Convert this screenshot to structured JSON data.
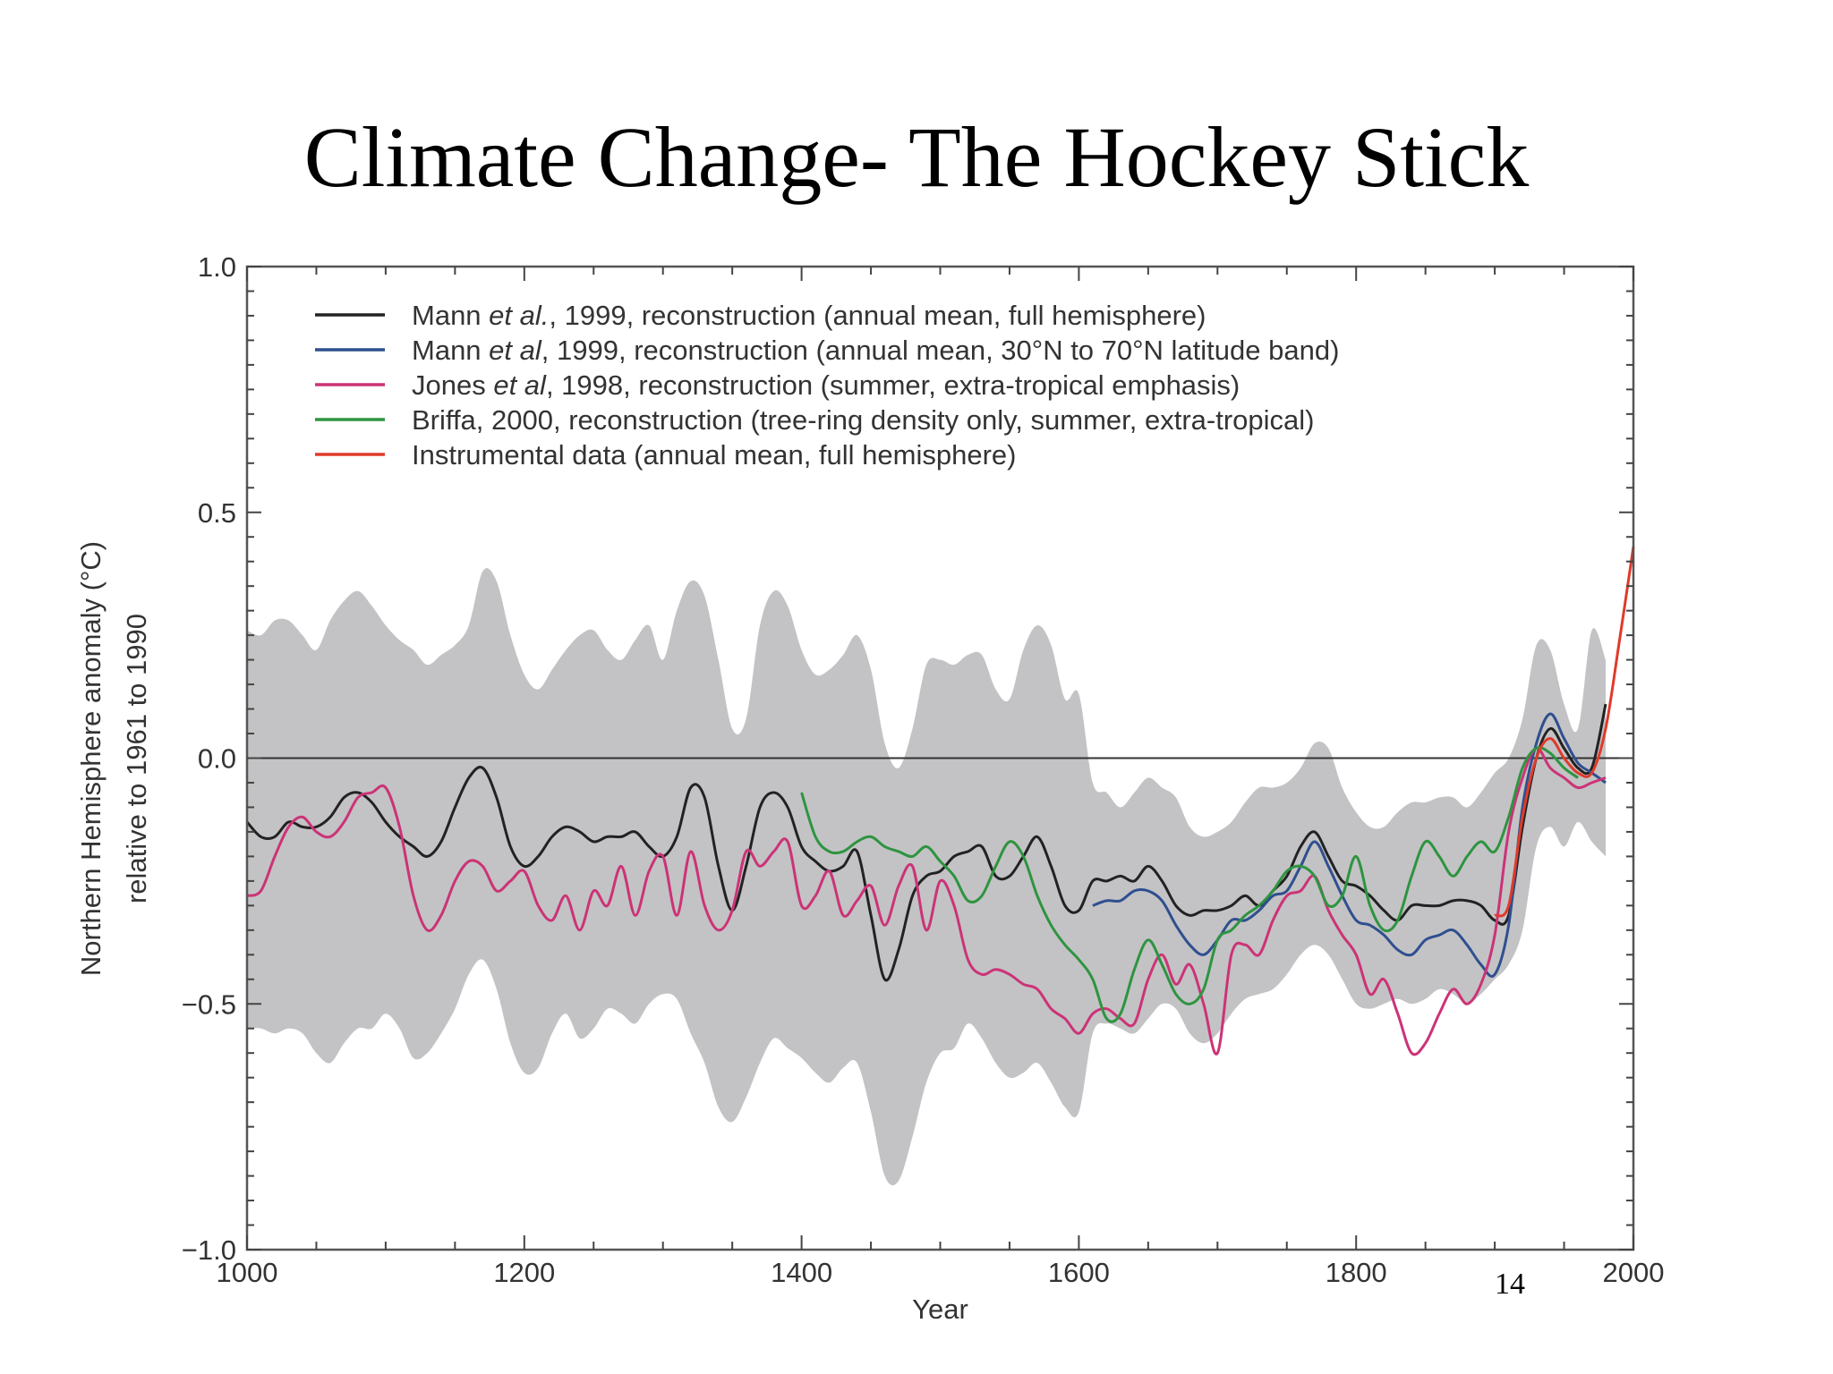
{
  "slide": {
    "title": "Climate Change- The Hockey Stick",
    "page_number": "14"
  },
  "chart_data": {
    "type": "line",
    "xlabel": "Year",
    "ylabel": [
      "Northern Hemisphere anomaly (°C)",
      "relative to 1961 to 1990"
    ],
    "xlim": [
      1000,
      2000
    ],
    "ylim": [
      -1.0,
      1.0
    ],
    "x_ticks": [
      1000,
      1200,
      1400,
      1600,
      1800,
      2000
    ],
    "y_ticks": [
      {
        "value": 1.0,
        "label": "1.0"
      },
      {
        "value": 0.5,
        "label": "0.5"
      },
      {
        "value": 0.0,
        "label": "0.0"
      },
      {
        "value": -0.5,
        "label": "−0.5"
      },
      {
        "value": -1.0,
        "label": "−1.0"
      }
    ],
    "zero_line": true,
    "grid": false,
    "legend_position": "top-left",
    "legend": [
      {
        "series": "mann_full",
        "parts": [
          {
            "t": "Mann "
          },
          {
            "t": "et al.",
            "i": true
          },
          {
            "t": ", 1999, reconstruction (annual mean, full hemisphere)"
          }
        ]
      },
      {
        "series": "mann_band",
        "parts": [
          {
            "t": "Mann "
          },
          {
            "t": "et al",
            "i": true
          },
          {
            "t": ", 1999, reconstruction (annual mean, 30°N to 70°N latitude band)"
          }
        ]
      },
      {
        "series": "jones",
        "parts": [
          {
            "t": "Jones "
          },
          {
            "t": "et al",
            "i": true
          },
          {
            "t": ", 1998, reconstruction (summer, extra-tropical emphasis)"
          }
        ]
      },
      {
        "series": "briffa",
        "parts": [
          {
            "t": "Briffa, 2000, reconstruction (tree-ring density only, summer, extra-tropical)"
          }
        ]
      },
      {
        "series": "instrumental",
        "parts": [
          {
            "t": "Instrumental data (annual mean, full hemisphere)"
          }
        ]
      }
    ],
    "uncertainty_band": {
      "color": "#c3c3c5",
      "x": [
        1000,
        1010,
        1020,
        1030,
        1040,
        1050,
        1060,
        1070,
        1080,
        1090,
        1100,
        1110,
        1120,
        1130,
        1140,
        1150,
        1160,
        1170,
        1180,
        1190,
        1200,
        1210,
        1220,
        1230,
        1240,
        1250,
        1260,
        1270,
        1280,
        1290,
        1300,
        1310,
        1320,
        1330,
        1340,
        1350,
        1360,
        1370,
        1380,
        1390,
        1400,
        1410,
        1420,
        1430,
        1440,
        1450,
        1460,
        1470,
        1480,
        1490,
        1500,
        1510,
        1520,
        1530,
        1540,
        1550,
        1560,
        1570,
        1580,
        1590,
        1600,
        1610,
        1620,
        1630,
        1640,
        1650,
        1660,
        1670,
        1680,
        1690,
        1700,
        1710,
        1720,
        1730,
        1740,
        1750,
        1760,
        1770,
        1780,
        1790,
        1800,
        1810,
        1820,
        1830,
        1840,
        1850,
        1860,
        1870,
        1880,
        1890,
        1900,
        1910,
        1920,
        1930,
        1940,
        1950,
        1960,
        1970,
        1980
      ],
      "upper": [
        0.26,
        0.25,
        0.28,
        0.28,
        0.25,
        0.22,
        0.28,
        0.32,
        0.34,
        0.31,
        0.27,
        0.24,
        0.22,
        0.19,
        0.21,
        0.23,
        0.27,
        0.38,
        0.36,
        0.25,
        0.17,
        0.14,
        0.18,
        0.22,
        0.25,
        0.26,
        0.22,
        0.2,
        0.24,
        0.27,
        0.2,
        0.3,
        0.36,
        0.33,
        0.2,
        0.06,
        0.08,
        0.27,
        0.34,
        0.31,
        0.22,
        0.17,
        0.18,
        0.21,
        0.25,
        0.18,
        0.03,
        -0.02,
        0.06,
        0.19,
        0.2,
        0.19,
        0.21,
        0.21,
        0.14,
        0.12,
        0.22,
        0.27,
        0.23,
        0.12,
        0.13,
        -0.05,
        -0.07,
        -0.1,
        -0.07,
        -0.04,
        -0.06,
        -0.08,
        -0.14,
        -0.16,
        -0.15,
        -0.13,
        -0.09,
        -0.06,
        -0.06,
        -0.05,
        -0.02,
        0.03,
        0.02,
        -0.06,
        -0.11,
        -0.14,
        -0.14,
        -0.11,
        -0.09,
        -0.09,
        -0.08,
        -0.08,
        -0.1,
        -0.07,
        -0.03,
        0.0,
        0.08,
        0.23,
        0.22,
        0.11,
        0.06,
        0.26,
        0.2
      ],
      "lower": [
        -0.55,
        -0.55,
        -0.56,
        -0.55,
        -0.56,
        -0.6,
        -0.62,
        -0.58,
        -0.55,
        -0.55,
        -0.52,
        -0.55,
        -0.61,
        -0.6,
        -0.56,
        -0.51,
        -0.44,
        -0.41,
        -0.47,
        -0.58,
        -0.64,
        -0.63,
        -0.56,
        -0.52,
        -0.57,
        -0.55,
        -0.51,
        -0.52,
        -0.54,
        -0.5,
        -0.48,
        -0.49,
        -0.56,
        -0.62,
        -0.71,
        -0.74,
        -0.69,
        -0.62,
        -0.57,
        -0.59,
        -0.61,
        -0.64,
        -0.66,
        -0.63,
        -0.62,
        -0.72,
        -0.85,
        -0.86,
        -0.77,
        -0.66,
        -0.6,
        -0.59,
        -0.54,
        -0.57,
        -0.62,
        -0.65,
        -0.64,
        -0.62,
        -0.66,
        -0.71,
        -0.72,
        -0.56,
        -0.54,
        -0.55,
        -0.56,
        -0.53,
        -0.5,
        -0.51,
        -0.56,
        -0.58,
        -0.56,
        -0.52,
        -0.49,
        -0.48,
        -0.47,
        -0.44,
        -0.4,
        -0.38,
        -0.4,
        -0.45,
        -0.5,
        -0.51,
        -0.5,
        -0.49,
        -0.5,
        -0.49,
        -0.47,
        -0.48,
        -0.5,
        -0.48,
        -0.45,
        -0.42,
        -0.35,
        -0.18,
        -0.14,
        -0.18,
        -0.13,
        -0.17,
        -0.2
      ]
    },
    "series": [
      {
        "name": "Mann et al., 1999, reconstruction (annual mean, full hemisphere)",
        "key": "mann_full",
        "color": "#222222",
        "x": [
          1000,
          1010,
          1020,
          1030,
          1040,
          1050,
          1060,
          1070,
          1080,
          1090,
          1100,
          1110,
          1120,
          1130,
          1140,
          1150,
          1160,
          1170,
          1180,
          1190,
          1200,
          1210,
          1220,
          1230,
          1240,
          1250,
          1260,
          1270,
          1280,
          1290,
          1300,
          1310,
          1320,
          1330,
          1340,
          1350,
          1360,
          1370,
          1380,
          1390,
          1400,
          1410,
          1420,
          1430,
          1440,
          1450,
          1460,
          1470,
          1480,
          1490,
          1500,
          1510,
          1520,
          1530,
          1540,
          1550,
          1560,
          1570,
          1580,
          1590,
          1600,
          1610,
          1620,
          1630,
          1640,
          1650,
          1660,
          1670,
          1680,
          1690,
          1700,
          1710,
          1720,
          1730,
          1740,
          1750,
          1760,
          1770,
          1780,
          1790,
          1800,
          1810,
          1820,
          1830,
          1840,
          1850,
          1860,
          1870,
          1880,
          1890,
          1900,
          1910,
          1920,
          1930,
          1940,
          1950,
          1960,
          1970,
          1980
        ],
        "y": [
          -0.13,
          -0.16,
          -0.16,
          -0.13,
          -0.14,
          -0.14,
          -0.12,
          -0.08,
          -0.07,
          -0.09,
          -0.13,
          -0.16,
          -0.18,
          -0.2,
          -0.17,
          -0.1,
          -0.04,
          -0.02,
          -0.08,
          -0.18,
          -0.22,
          -0.2,
          -0.16,
          -0.14,
          -0.15,
          -0.17,
          -0.16,
          -0.16,
          -0.15,
          -0.18,
          -0.2,
          -0.16,
          -0.06,
          -0.08,
          -0.22,
          -0.31,
          -0.22,
          -0.1,
          -0.07,
          -0.1,
          -0.18,
          -0.21,
          -0.23,
          -0.22,
          -0.19,
          -0.32,
          -0.45,
          -0.39,
          -0.28,
          -0.24,
          -0.23,
          -0.2,
          -0.19,
          -0.18,
          -0.24,
          -0.24,
          -0.2,
          -0.16,
          -0.22,
          -0.3,
          -0.31,
          -0.25,
          -0.25,
          -0.24,
          -0.25,
          -0.22,
          -0.25,
          -0.3,
          -0.32,
          -0.31,
          -0.31,
          -0.3,
          -0.28,
          -0.3,
          -0.27,
          -0.24,
          -0.18,
          -0.15,
          -0.2,
          -0.25,
          -0.26,
          -0.28,
          -0.31,
          -0.33,
          -0.3,
          -0.3,
          -0.3,
          -0.29,
          -0.29,
          -0.3,
          -0.33,
          -0.32,
          -0.14,
          0.0,
          0.06,
          0.02,
          -0.02,
          -0.02,
          0.11
        ]
      },
      {
        "name": "Mann et al, 1999, reconstruction (annual mean, 30°N to 70°N latitude band)",
        "key": "mann_band",
        "color": "#2f4f8f",
        "x": [
          1610,
          1620,
          1630,
          1640,
          1650,
          1660,
          1670,
          1680,
          1690,
          1700,
          1710,
          1720,
          1730,
          1740,
          1750,
          1760,
          1770,
          1780,
          1790,
          1800,
          1810,
          1820,
          1830,
          1840,
          1850,
          1860,
          1870,
          1880,
          1890,
          1900,
          1910,
          1920,
          1930,
          1940,
          1950,
          1960,
          1970,
          1980
        ],
        "y": [
          -0.3,
          -0.29,
          -0.29,
          -0.27,
          -0.27,
          -0.29,
          -0.34,
          -0.38,
          -0.4,
          -0.37,
          -0.33,
          -0.33,
          -0.31,
          -0.28,
          -0.27,
          -0.22,
          -0.17,
          -0.22,
          -0.28,
          -0.33,
          -0.34,
          -0.36,
          -0.39,
          -0.4,
          -0.37,
          -0.36,
          -0.35,
          -0.38,
          -0.42,
          -0.44,
          -0.34,
          -0.1,
          0.03,
          0.09,
          0.04,
          -0.01,
          -0.03,
          -0.05
        ]
      },
      {
        "name": "Jones et al, 1998, reconstruction (summer, extra-tropical emphasis)",
        "key": "jones",
        "color": "#cc3377",
        "x": [
          1000,
          1010,
          1020,
          1030,
          1040,
          1050,
          1060,
          1070,
          1080,
          1090,
          1100,
          1110,
          1120,
          1130,
          1140,
          1150,
          1160,
          1170,
          1180,
          1190,
          1200,
          1210,
          1220,
          1230,
          1240,
          1250,
          1260,
          1270,
          1280,
          1290,
          1300,
          1310,
          1320,
          1330,
          1340,
          1350,
          1360,
          1370,
          1380,
          1390,
          1400,
          1410,
          1420,
          1430,
          1440,
          1450,
          1460,
          1470,
          1480,
          1490,
          1500,
          1510,
          1520,
          1530,
          1540,
          1550,
          1560,
          1570,
          1580,
          1590,
          1600,
          1610,
          1620,
          1630,
          1640,
          1650,
          1660,
          1670,
          1680,
          1690,
          1700,
          1710,
          1720,
          1730,
          1740,
          1750,
          1760,
          1770,
          1780,
          1790,
          1800,
          1810,
          1820,
          1830,
          1840,
          1850,
          1860,
          1870,
          1880,
          1890,
          1900,
          1910,
          1920,
          1930,
          1940,
          1950,
          1960,
          1970,
          1980
        ],
        "y": [
          -0.28,
          -0.27,
          -0.2,
          -0.14,
          -0.12,
          -0.15,
          -0.16,
          -0.13,
          -0.08,
          -0.07,
          -0.06,
          -0.14,
          -0.28,
          -0.35,
          -0.32,
          -0.25,
          -0.21,
          -0.22,
          -0.27,
          -0.25,
          -0.23,
          -0.3,
          -0.33,
          -0.28,
          -0.35,
          -0.27,
          -0.3,
          -0.22,
          -0.32,
          -0.23,
          -0.2,
          -0.32,
          -0.19,
          -0.3,
          -0.35,
          -0.31,
          -0.19,
          -0.22,
          -0.19,
          -0.17,
          -0.3,
          -0.28,
          -0.23,
          -0.32,
          -0.29,
          -0.26,
          -0.34,
          -0.26,
          -0.22,
          -0.35,
          -0.25,
          -0.3,
          -0.41,
          -0.44,
          -0.43,
          -0.44,
          -0.46,
          -0.47,
          -0.51,
          -0.53,
          -0.56,
          -0.52,
          -0.51,
          -0.53,
          -0.54,
          -0.45,
          -0.4,
          -0.46,
          -0.42,
          -0.5,
          -0.6,
          -0.4,
          -0.38,
          -0.4,
          -0.33,
          -0.28,
          -0.27,
          -0.24,
          -0.31,
          -0.36,
          -0.4,
          -0.48,
          -0.45,
          -0.52,
          -0.6,
          -0.58,
          -0.52,
          -0.47,
          -0.5,
          -0.46,
          -0.36,
          -0.15,
          -0.04,
          0.02,
          -0.02,
          -0.04,
          -0.06,
          -0.05,
          -0.04
        ]
      },
      {
        "name": "Briffa, 2000, reconstruction (tree-ring density only, summer, extra-tropical)",
        "key": "briffa",
        "color": "#2e9440",
        "x": [
          1400,
          1410,
          1420,
          1430,
          1440,
          1450,
          1460,
          1470,
          1480,
          1490,
          1500,
          1510,
          1520,
          1530,
          1540,
          1550,
          1560,
          1570,
          1580,
          1590,
          1600,
          1610,
          1620,
          1630,
          1640,
          1650,
          1660,
          1670,
          1680,
          1690,
          1700,
          1710,
          1720,
          1730,
          1740,
          1750,
          1760,
          1770,
          1780,
          1790,
          1800,
          1810,
          1820,
          1830,
          1840,
          1850,
          1860,
          1870,
          1880,
          1890,
          1900,
          1910,
          1920,
          1930,
          1940,
          1950,
          1960
        ],
        "y": [
          -0.07,
          -0.16,
          -0.19,
          -0.19,
          -0.17,
          -0.16,
          -0.18,
          -0.19,
          -0.2,
          -0.18,
          -0.21,
          -0.24,
          -0.29,
          -0.28,
          -0.22,
          -0.17,
          -0.2,
          -0.28,
          -0.34,
          -0.38,
          -0.41,
          -0.45,
          -0.53,
          -0.52,
          -0.43,
          -0.37,
          -0.42,
          -0.48,
          -0.5,
          -0.47,
          -0.37,
          -0.35,
          -0.32,
          -0.3,
          -0.27,
          -0.23,
          -0.22,
          -0.24,
          -0.3,
          -0.28,
          -0.2,
          -0.3,
          -0.35,
          -0.33,
          -0.24,
          -0.17,
          -0.2,
          -0.24,
          -0.2,
          -0.17,
          -0.19,
          -0.12,
          -0.02,
          0.02,
          0.01,
          -0.02,
          -0.04
        ]
      },
      {
        "name": "Instrumental data (annual mean, full hemisphere)",
        "key": "instrumental",
        "color": "#e03a2a",
        "x": [
          1900,
          1910,
          1920,
          1930,
          1940,
          1950,
          1960,
          1970,
          1980,
          1990,
          2000
        ],
        "y": [
          -0.32,
          -0.3,
          -0.12,
          0.0,
          0.04,
          0.0,
          -0.03,
          -0.03,
          0.06,
          0.24,
          0.43
        ]
      }
    ]
  }
}
